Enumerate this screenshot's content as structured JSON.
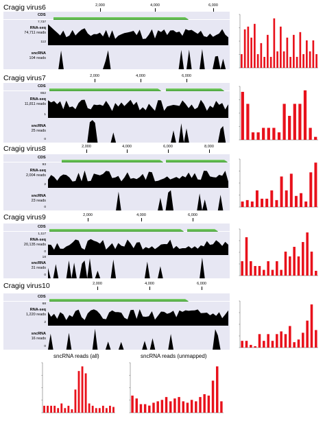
{
  "viruses": [
    {
      "name": "Cragig virus6",
      "ticks": [
        "2,000",
        "4,000",
        "6,000"
      ],
      "cds_label": "CDS",
      "rnaseq": {
        "label": "RNA-seq",
        "reads": "74,711 reads",
        "max": "7,737",
        "min": "112"
      },
      "sncrna": {
        "label": "sncRNA",
        "reads": "104 reads",
        "max": "",
        "min": ""
      },
      "bars": [
        2.5,
        7.0,
        7.5,
        5.5,
        8.0,
        2.5,
        4.5,
        2.0,
        6.0,
        2.0,
        9.0,
        3.0,
        7.5,
        3.0,
        5.5,
        2.0,
        6.0,
        2.0,
        6.5,
        2.5,
        5.0,
        3.0,
        5.0,
        2.5
      ]
    },
    {
      "name": "Cragig virus7",
      "ticks": [
        "2,000",
        "4,000",
        "6,000"
      ],
      "cds_label": "CDS",
      "rnaseq": {
        "label": "RNA-seq",
        "reads": "11,811 reads",
        "max": "652",
        "min": "1"
      },
      "sncrna": {
        "label": "sncRNA",
        "reads": "25 reads",
        "max": "",
        "min": "0"
      },
      "bars": [
        16.0,
        12.0,
        2.5,
        2.5,
        4.0,
        4.0,
        4.0,
        2.5,
        12.0,
        8.0,
        12.0,
        12.0,
        16.5,
        4.0,
        1.0
      ]
    },
    {
      "name": "Cragig virus8",
      "ticks": [
        "2,000",
        "4,000",
        "6,000",
        "8,000"
      ],
      "cds_label": "CDS",
      "rnaseq": {
        "label": "RNA-seq",
        "reads": "2,004 reads",
        "max": "93",
        "min": "2"
      },
      "sncrna": {
        "label": "sncRNA",
        "reads": "23 reads",
        "max": "",
        "min": "0"
      },
      "bars": [
        0.4,
        0.5,
        0.4,
        1.2,
        0.6,
        0.6,
        1.2,
        0.5,
        2.2,
        1.2,
        2.4,
        0.8,
        1.0,
        0.4,
        2.5,
        3.2
      ]
    },
    {
      "name": "Cragig virus9",
      "ticks": [
        "2,000",
        "4,000",
        "6,000"
      ],
      "cds_label": "CDS",
      "rnaseq": {
        "label": "RNA-seq",
        "reads": "20,135 reads",
        "max": "1,117",
        "min": "0"
      },
      "sncrna": {
        "label": "sncRNA",
        "reads": "31 reads",
        "max": "18",
        "min": "0"
      },
      "bars": [
        3.0,
        8.0,
        3.0,
        2.0,
        2.0,
        1.2,
        3.0,
        1.2,
        3.0,
        1.2,
        5.0,
        4.0,
        6.0,
        4.0,
        7.0,
        9.0,
        5.0,
        1.0
      ]
    },
    {
      "name": "Cragig virus10",
      "ticks": [
        "2,000",
        "4,000",
        "6,000"
      ],
      "cds_label": "CDS",
      "rnaseq": {
        "label": "RNA-seq",
        "reads": "1,220 reads",
        "max": "68",
        "min": "2"
      },
      "sncrna": {
        "label": "sncRNA",
        "reads": "16 reads",
        "max": "",
        "min": "0"
      },
      "bars": [
        0.5,
        0.5,
        0.2,
        0.1,
        1.0,
        0.5,
        1.0,
        0.5,
        1.0,
        1.2,
        1.0,
        1.6,
        0.4,
        0.6,
        1.1,
        2.0,
        3.2,
        1.3
      ]
    }
  ],
  "bottom": [
    {
      "title": "sncRNA reads (all)",
      "bars": [
        0.6,
        0.6,
        0.6,
        0.6,
        0.4,
        0.8,
        0.4,
        0.6,
        0.3,
        2.0,
        3.6,
        4.0,
        3.4,
        0.8,
        0.6,
        0.4,
        0.4,
        0.6,
        0.4,
        0.6,
        0.5
      ]
    },
    {
      "title": "sncRNA reads (unmapped)",
      "bars": [
        2.4,
        2.0,
        1.2,
        1.2,
        1.0,
        1.4,
        1.6,
        1.8,
        2.2,
        1.6,
        2.0,
        2.2,
        1.6,
        1.4,
        1.8,
        1.6,
        2.2,
        2.6,
        2.4,
        4.5,
        6.5,
        1.6
      ]
    }
  ],
  "colors": {
    "bar": "#e8111b",
    "cds": "#2c9a1f",
    "panel": "#e7e7f3",
    "track": "#000000"
  }
}
